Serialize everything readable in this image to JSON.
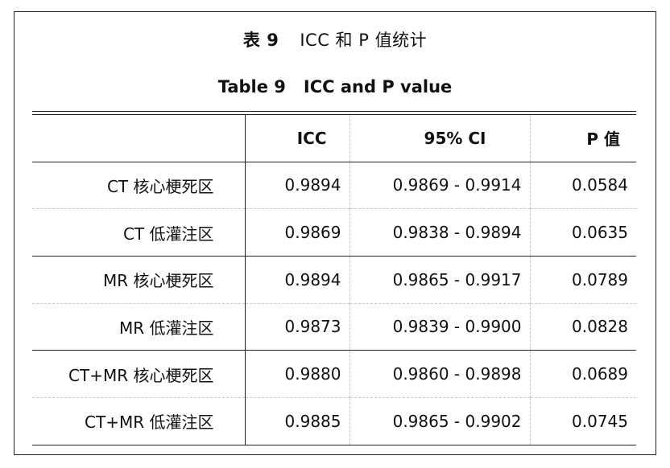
{
  "caption": {
    "cn_number": "表 9",
    "cn_text": "ICC 和 P 值统计",
    "en_number": "Table 9",
    "en_text": "ICC and P value"
  },
  "table": {
    "headers": [
      "",
      "ICC",
      "95% CI",
      "P 值"
    ],
    "rows": [
      {
        "label": "CT 核心梗死区",
        "icc": "0.9894",
        "ci": "0.9869 - 0.9914",
        "p": "0.0584"
      },
      {
        "label": "CT 低灌注区",
        "icc": "0.9869",
        "ci": "0.9838 - 0.9894",
        "p": "0.0635"
      },
      {
        "label": "MR 核心梗死区",
        "icc": "0.9894",
        "ci": "0.9865 - 0.9917",
        "p": "0.0789"
      },
      {
        "label": "MR 低灌注区",
        "icc": "0.9873",
        "ci": "0.9839 - 0.9900",
        "p": "0.0828"
      },
      {
        "label": "CT+MR 核心梗死区",
        "icc": "0.9880",
        "ci": "0.9860 - 0.9898",
        "p": "0.0689"
      },
      {
        "label": "CT+MR 低灌注区",
        "icc": "0.9885",
        "ci": "0.9865 - 0.9902",
        "p": "0.0745"
      }
    ]
  }
}
